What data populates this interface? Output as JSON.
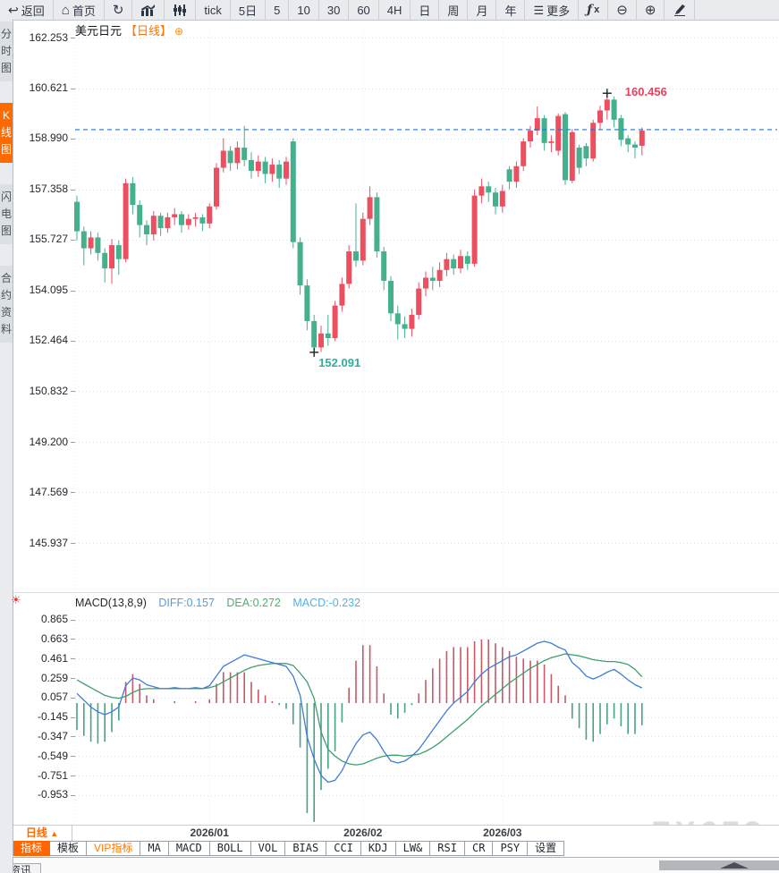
{
  "accent": {
    "orange": "#ff6600",
    "candle_up": "#ec4f5f",
    "candle_down": "#45b08c",
    "hist_up": "#c85a64",
    "hist_down": "#4aa284",
    "diff_line": "#3d7dd6",
    "dea_line": "#3da06b",
    "price_line": "#1a73e8",
    "high_label_color": "#e8425c",
    "low_label_color": "#2fae9b"
  },
  "toolbar": {
    "items": [
      {
        "id": "back",
        "icon": "back-icon",
        "label": "返回"
      },
      {
        "id": "home",
        "icon": "home-icon",
        "label": "首页"
      },
      {
        "id": "refresh",
        "icon": "refresh-icon",
        "label": ""
      },
      {
        "id": "trend",
        "icon": "bar-chart-icon",
        "label": ""
      },
      {
        "id": "kline",
        "icon": "candles-icon",
        "label": ""
      },
      {
        "id": "tick",
        "icon": "",
        "label": "tick"
      },
      {
        "id": "5d",
        "icon": "",
        "label": "5日"
      },
      {
        "id": "m5",
        "icon": "",
        "label": "5"
      },
      {
        "id": "m10",
        "icon": "",
        "label": "10"
      },
      {
        "id": "m30",
        "icon": "",
        "label": "30"
      },
      {
        "id": "m60",
        "icon": "",
        "label": "60"
      },
      {
        "id": "h4",
        "icon": "",
        "label": "4H"
      },
      {
        "id": "day",
        "icon": "",
        "label": "日"
      },
      {
        "id": "week",
        "icon": "",
        "label": "周"
      },
      {
        "id": "month",
        "icon": "",
        "label": "月"
      },
      {
        "id": "year",
        "icon": "",
        "label": "年"
      },
      {
        "id": "more",
        "icon": "menu-icon",
        "label": "更多"
      },
      {
        "id": "formula",
        "icon": "fx-icon",
        "label": ""
      },
      {
        "id": "zoom-out",
        "icon": "zoom-out-icon",
        "label": ""
      },
      {
        "id": "zoom-in",
        "icon": "zoom-in-icon",
        "label": ""
      },
      {
        "id": "draw",
        "icon": "pen-icon",
        "label": ""
      }
    ]
  },
  "sidebar": {
    "tabs": [
      {
        "label": "分时图",
        "active": false
      },
      {
        "label": "K线图",
        "active": true
      },
      {
        "label": "闪电图",
        "active": false
      },
      {
        "label": "合约资料",
        "active": false
      }
    ]
  },
  "title": {
    "symbol": "美元日元",
    "period": "【日线】",
    "plus": "⊕"
  },
  "macd_header": {
    "params": "MACD(13,8,9)",
    "diff": "DIFF:0.157",
    "dea": "DEA:0.272",
    "macd": "MACD:-0.232"
  },
  "period_box": {
    "label": "日线",
    "arrow": "▲"
  },
  "indicator_tabs": [
    {
      "label": "指标",
      "style": "active"
    },
    {
      "label": "模板",
      "style": ""
    },
    {
      "label": "VIP指标",
      "style": "vip"
    },
    {
      "label": "MA",
      "style": ""
    },
    {
      "label": "MACD",
      "style": ""
    },
    {
      "label": "BOLL",
      "style": ""
    },
    {
      "label": "VOL",
      "style": ""
    },
    {
      "label": "BIAS",
      "style": ""
    },
    {
      "label": "CCI",
      "style": ""
    },
    {
      "label": "KDJ",
      "style": ""
    },
    {
      "label": "LW&",
      "style": ""
    },
    {
      "label": "RSI",
      "style": ""
    },
    {
      "label": "CR",
      "style": ""
    },
    {
      "label": "PSY",
      "style": ""
    },
    {
      "label": "设置",
      "style": ""
    }
  ],
  "news_tab": {
    "label": "资讯"
  },
  "watermark": "FX678",
  "chart_data": [
    {
      "type": "candlestick",
      "title": "美元日元 日线",
      "y_ticks": [
        "162.253",
        "160.621",
        "158.990",
        "157.358",
        "155.727",
        "154.095",
        "152.464",
        "150.832",
        "149.200",
        "147.569",
        "145.937"
      ],
      "ylim": [
        145.937,
        162.253
      ],
      "grid": "dotted",
      "price_line": 159.28,
      "high_annotation": {
        "label": "160.456",
        "value": 160.456,
        "index": 76
      },
      "low_annotation": {
        "label": "152.091",
        "value": 152.091,
        "index": 34
      },
      "x_labels": [
        {
          "label": "2026/01",
          "index": 19
        },
        {
          "label": "2026/02",
          "index": 41
        },
        {
          "label": "2026/03",
          "index": 61
        }
      ],
      "candles": [
        [
          156.95,
          156.0,
          157.15,
          155.7
        ],
        [
          156.0,
          155.45,
          156.15,
          154.9
        ],
        [
          155.45,
          155.8,
          156.0,
          155.25
        ],
        [
          155.8,
          155.3,
          155.95,
          155.05
        ],
        [
          155.3,
          154.8,
          155.45,
          154.35
        ],
        [
          154.8,
          155.55,
          155.75,
          154.3
        ],
        [
          155.55,
          155.1,
          155.7,
          154.6
        ],
        [
          155.1,
          157.55,
          157.7,
          155.0
        ],
        [
          157.55,
          156.85,
          157.75,
          156.55
        ],
        [
          156.85,
          156.2,
          157.0,
          155.8
        ],
        [
          156.2,
          155.9,
          156.35,
          155.55
        ],
        [
          155.9,
          156.5,
          156.65,
          155.7
        ],
        [
          156.5,
          156.1,
          156.6,
          155.85
        ],
        [
          156.1,
          156.45,
          156.6,
          155.95
        ],
        [
          156.45,
          156.55,
          156.75,
          156.2
        ],
        [
          156.55,
          156.2,
          156.65,
          155.95
        ],
        [
          156.2,
          156.4,
          156.55,
          156.05
        ],
        [
          156.4,
          156.45,
          156.6,
          156.15
        ],
        [
          156.45,
          156.25,
          156.55,
          156.0
        ],
        [
          156.25,
          156.8,
          156.9,
          156.1
        ],
        [
          156.8,
          158.05,
          158.2,
          156.7
        ],
        [
          158.05,
          158.6,
          159.0,
          157.9
        ],
        [
          158.6,
          158.2,
          158.75,
          157.95
        ],
        [
          158.2,
          158.7,
          158.9,
          158.0
        ],
        [
          158.7,
          158.3,
          159.4,
          158.1
        ],
        [
          158.3,
          157.95,
          158.55,
          157.7
        ],
        [
          157.95,
          158.25,
          158.45,
          157.75
        ],
        [
          158.25,
          157.85,
          158.4,
          157.55
        ],
        [
          157.85,
          158.15,
          158.35,
          157.6
        ],
        [
          158.15,
          157.7,
          158.3,
          157.4
        ],
        [
          157.7,
          158.25,
          158.4,
          157.5
        ],
        [
          158.9,
          155.65,
          159.0,
          155.45
        ],
        [
          155.65,
          154.25,
          155.8,
          153.95
        ],
        [
          154.25,
          153.1,
          154.45,
          152.8
        ],
        [
          153.1,
          152.25,
          153.3,
          152.091
        ],
        [
          152.25,
          152.7,
          152.95,
          152.1
        ],
        [
          152.7,
          152.55,
          153.3,
          152.3
        ],
        [
          152.55,
          153.6,
          153.75,
          152.45
        ],
        [
          153.6,
          154.3,
          154.5,
          153.4
        ],
        [
          154.3,
          155.35,
          155.55,
          154.15
        ],
        [
          155.35,
          155.05,
          156.9,
          154.85
        ],
        [
          155.05,
          156.4,
          156.6,
          154.9
        ],
        [
          156.4,
          157.1,
          157.45,
          156.2
        ],
        [
          157.1,
          155.35,
          157.25,
          155.15
        ],
        [
          155.35,
          154.4,
          155.5,
          154.1
        ],
        [
          154.4,
          153.35,
          154.55,
          153.1
        ],
        [
          153.35,
          153.0,
          153.6,
          152.5
        ],
        [
          153.0,
          152.85,
          153.25,
          152.55
        ],
        [
          152.85,
          153.3,
          153.5,
          152.6
        ],
        [
          153.3,
          154.15,
          154.35,
          153.15
        ],
        [
          154.15,
          154.5,
          154.7,
          153.9
        ],
        [
          154.5,
          154.4,
          154.85,
          154.1
        ],
        [
          154.4,
          154.75,
          155.0,
          154.2
        ],
        [
          154.75,
          155.1,
          155.3,
          154.55
        ],
        [
          155.1,
          154.8,
          155.25,
          154.6
        ],
        [
          154.8,
          155.2,
          155.4,
          154.65
        ],
        [
          155.2,
          154.95,
          155.35,
          154.75
        ],
        [
          154.95,
          157.15,
          157.35,
          154.85
        ],
        [
          157.15,
          157.45,
          157.7,
          156.9
        ],
        [
          157.45,
          157.25,
          157.6,
          156.95
        ],
        [
          157.25,
          156.8,
          157.4,
          156.55
        ],
        [
          156.8,
          157.3,
          157.5,
          156.6
        ],
        [
          158.0,
          157.6,
          158.1,
          157.35
        ],
        [
          157.6,
          158.1,
          158.25,
          157.4
        ],
        [
          158.1,
          158.9,
          159.0,
          157.95
        ],
        [
          158.9,
          159.25,
          159.4,
          158.7
        ],
        [
          159.25,
          159.65,
          160.03,
          159.1
        ],
        [
          159.65,
          158.85,
          159.75,
          158.6
        ],
        [
          158.85,
          158.9,
          159.1,
          158.55
        ],
        [
          158.6,
          159.72,
          159.8,
          158.45
        ],
        [
          159.78,
          157.65,
          159.85,
          157.5
        ],
        [
          157.63,
          159.2,
          159.3,
          157.55
        ],
        [
          158.7,
          158.05,
          158.8,
          157.85
        ],
        [
          158.75,
          158.35,
          158.85,
          158.1
        ],
        [
          158.35,
          159.5,
          159.6,
          158.25
        ],
        [
          159.5,
          159.9,
          160.05,
          159.3
        ],
        [
          159.9,
          160.25,
          160.456,
          159.6
        ],
        [
          160.25,
          159.6,
          160.35,
          159.35
        ],
        [
          159.65,
          158.95,
          159.75,
          158.75
        ],
        [
          159.0,
          158.8,
          159.1,
          158.55
        ],
        [
          158.8,
          158.7,
          158.9,
          158.35
        ],
        [
          158.76,
          159.25,
          159.35,
          158.45
        ]
      ]
    },
    {
      "type": "macd",
      "params": "MACD(13,8,9)",
      "values": {
        "diff": 0.157,
        "dea": 0.272,
        "macd": -0.232
      },
      "y_ticks": [
        "0.865",
        "0.663",
        "0.461",
        "0.259",
        "0.057",
        "-0.145",
        "-0.347",
        "-0.549",
        "-0.751",
        "-0.953"
      ],
      "histogram_rule": "2*(diff-dea)",
      "diff": [
        0.1,
        0.03,
        -0.04,
        -0.09,
        -0.12,
        -0.09,
        -0.04,
        0.18,
        0.26,
        0.24,
        0.19,
        0.17,
        0.15,
        0.15,
        0.16,
        0.15,
        0.15,
        0.16,
        0.15,
        0.18,
        0.28,
        0.38,
        0.42,
        0.46,
        0.5,
        0.48,
        0.46,
        0.44,
        0.42,
        0.4,
        0.38,
        0.28,
        0.08,
        -0.35,
        -0.58,
        -0.75,
        -0.82,
        -0.8,
        -0.7,
        -0.55,
        -0.42,
        -0.33,
        -0.3,
        -0.38,
        -0.5,
        -0.6,
        -0.62,
        -0.6,
        -0.55,
        -0.48,
        -0.38,
        -0.28,
        -0.18,
        -0.08,
        0.0,
        0.06,
        0.12,
        0.22,
        0.3,
        0.36,
        0.4,
        0.44,
        0.48,
        0.5,
        0.54,
        0.58,
        0.62,
        0.64,
        0.62,
        0.58,
        0.55,
        0.42,
        0.36,
        0.28,
        0.25,
        0.28,
        0.32,
        0.35,
        0.3,
        0.24,
        0.19,
        0.157
      ],
      "dea": [
        0.24,
        0.2,
        0.16,
        0.12,
        0.08,
        0.06,
        0.05,
        0.07,
        0.11,
        0.14,
        0.15,
        0.15,
        0.15,
        0.15,
        0.15,
        0.15,
        0.15,
        0.15,
        0.15,
        0.16,
        0.18,
        0.22,
        0.26,
        0.3,
        0.34,
        0.37,
        0.39,
        0.4,
        0.41,
        0.41,
        0.41,
        0.39,
        0.31,
        0.22,
        0.05,
        -0.3,
        -0.48,
        -0.55,
        -0.6,
        -0.63,
        -0.64,
        -0.63,
        -0.6,
        -0.57,
        -0.55,
        -0.54,
        -0.54,
        -0.55,
        -0.54,
        -0.53,
        -0.5,
        -0.46,
        -0.41,
        -0.35,
        -0.29,
        -0.23,
        -0.17,
        -0.1,
        -0.03,
        0.03,
        0.09,
        0.15,
        0.21,
        0.26,
        0.31,
        0.36,
        0.4,
        0.44,
        0.47,
        0.49,
        0.51,
        0.5,
        0.49,
        0.47,
        0.45,
        0.44,
        0.43,
        0.43,
        0.42,
        0.4,
        0.35,
        0.272
      ]
    }
  ]
}
